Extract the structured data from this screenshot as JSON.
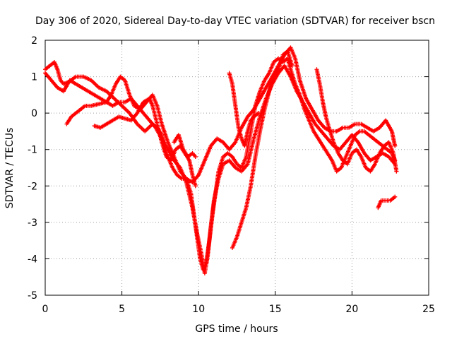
{
  "chart_data": {
    "type": "scatter",
    "title": "Day 306 of 2020, Sidereal Day-to-day VTEC variation (SDTVAR) for receiver bscn",
    "xlabel": "GPS time / hours",
    "ylabel": "SDTVAR / TECUs",
    "xlim": [
      0,
      25
    ],
    "ylim": [
      -5,
      2
    ],
    "xticks": [
      "0",
      "5",
      "10",
      "15",
      "20",
      "25"
    ],
    "yticks": [
      "-5",
      "-4",
      "-3",
      "-2",
      "-1",
      "0",
      "1",
      "2"
    ],
    "grid": true,
    "marker": "plus",
    "color": "#ff0000",
    "series": [
      {
        "segments": [
          [
            [
              0.0,
              1.2
            ],
            [
              0.3,
              1.3
            ],
            [
              0.6,
              1.4
            ],
            [
              0.8,
              1.2
            ],
            [
              1.0,
              0.9
            ],
            [
              1.2,
              0.8
            ],
            [
              1.5,
              0.85
            ],
            [
              2.0,
              1.0
            ],
            [
              2.5,
              1.0
            ],
            [
              3.0,
              0.9
            ],
            [
              3.5,
              0.7
            ],
            [
              4.0,
              0.6
            ],
            [
              4.5,
              0.4
            ],
            [
              5.0,
              0.2
            ],
            [
              5.5,
              0.0
            ],
            [
              6.0,
              -0.3
            ],
            [
              6.5,
              -0.5
            ],
            [
              7.0,
              -0.3
            ],
            [
              7.3,
              -0.4
            ],
            [
              7.6,
              -0.6
            ],
            [
              7.8,
              -1.0
            ],
            [
              8.0,
              -1.2
            ],
            [
              8.3,
              -1.5
            ],
            [
              8.6,
              -1.7
            ],
            [
              8.9,
              -1.8
            ],
            [
              9.2,
              -1.8
            ],
            [
              9.5,
              -2.2
            ],
            [
              9.7,
              -2.8
            ],
            [
              9.9,
              -3.4
            ],
            [
              10.1,
              -4.0
            ],
            [
              10.3,
              -4.3
            ],
            [
              10.5,
              -4.1
            ],
            [
              10.7,
              -3.5
            ],
            [
              10.9,
              -2.8
            ],
            [
              11.1,
              -2.2
            ],
            [
              11.3,
              -1.6
            ],
            [
              11.6,
              -1.2
            ],
            [
              11.9,
              -1.1
            ],
            [
              12.2,
              -1.2
            ],
            [
              12.5,
              -1.4
            ],
            [
              12.8,
              -1.5
            ],
            [
              13.1,
              -1.2
            ],
            [
              13.4,
              -0.5
            ],
            [
              13.7,
              0.2
            ],
            [
              14.0,
              0.6
            ],
            [
              14.3,
              0.9
            ],
            [
              14.6,
              1.1
            ],
            [
              14.9,
              1.4
            ],
            [
              15.2,
              1.5
            ],
            [
              15.5,
              1.4
            ],
            [
              15.8,
              1.5
            ],
            [
              16.0,
              1.2
            ],
            [
              16.3,
              0.8
            ],
            [
              16.6,
              0.5
            ],
            [
              16.9,
              0.1
            ],
            [
              17.2,
              -0.2
            ],
            [
              17.5,
              -0.5
            ],
            [
              17.8,
              -0.7
            ],
            [
              18.1,
              -0.9
            ],
            [
              18.4,
              -1.1
            ],
            [
              18.7,
              -1.3
            ],
            [
              19.0,
              -1.6
            ],
            [
              19.3,
              -1.5
            ],
            [
              19.6,
              -1.2
            ],
            [
              19.9,
              -0.9
            ],
            [
              20.2,
              -0.6
            ],
            [
              20.5,
              -0.5
            ],
            [
              20.8,
              -0.5
            ],
            [
              21.1,
              -0.6
            ],
            [
              21.4,
              -0.7
            ],
            [
              21.7,
              -0.8
            ],
            [
              22.0,
              -0.9
            ],
            [
              22.3,
              -1.0
            ],
            [
              22.6,
              -1.1
            ],
            [
              22.8,
              -1.3
            ]
          ],
          [
            [
              0.0,
              1.1
            ],
            [
              0.4,
              0.9
            ],
            [
              0.8,
              0.7
            ],
            [
              1.2,
              0.6
            ],
            [
              1.6,
              0.9
            ],
            [
              2.0,
              0.8
            ],
            [
              2.4,
              0.7
            ],
            [
              2.8,
              0.6
            ],
            [
              3.2,
              0.5
            ],
            [
              3.6,
              0.4
            ],
            [
              4.0,
              0.3
            ],
            [
              4.4,
              0.2
            ],
            [
              4.8,
              0.3
            ],
            [
              5.2,
              0.3
            ],
            [
              5.6,
              0.4
            ],
            [
              6.0,
              0.2
            ],
            [
              6.4,
              0.0
            ],
            [
              6.8,
              -0.2
            ],
            [
              7.2,
              -0.4
            ],
            [
              7.6,
              -0.7
            ],
            [
              8.0,
              -1.0
            ],
            [
              8.4,
              -1.3
            ],
            [
              8.8,
              -1.5
            ],
            [
              9.2,
              -1.9
            ],
            [
              9.6,
              -2.6
            ],
            [
              9.9,
              -3.3
            ],
            [
              10.2,
              -3.9
            ],
            [
              10.4,
              -4.4
            ],
            [
              10.6,
              -3.9
            ],
            [
              10.8,
              -3.1
            ],
            [
              11.0,
              -2.4
            ],
            [
              11.3,
              -1.8
            ],
            [
              11.6,
              -1.4
            ],
            [
              12.0,
              -1.3
            ],
            [
              12.4,
              -1.5
            ],
            [
              12.8,
              -1.6
            ],
            [
              13.2,
              -1.4
            ],
            [
              13.6,
              -0.7
            ],
            [
              14.0,
              -0.1
            ],
            [
              14.4,
              0.4
            ],
            [
              14.8,
              0.8
            ],
            [
              15.2,
              1.1
            ],
            [
              15.6,
              1.3
            ],
            [
              16.0,
              1.0
            ],
            [
              16.4,
              0.6
            ],
            [
              16.8,
              0.3
            ],
            [
              17.2,
              0.0
            ],
            [
              17.6,
              -0.3
            ],
            [
              18.0,
              -0.5
            ],
            [
              18.4,
              -0.7
            ],
            [
              18.8,
              -0.9
            ],
            [
              19.2,
              -1.0
            ],
            [
              19.6,
              -0.8
            ],
            [
              20.0,
              -0.6
            ],
            [
              20.4,
              -0.8
            ],
            [
              20.8,
              -1.1
            ],
            [
              21.2,
              -1.3
            ],
            [
              21.6,
              -1.2
            ],
            [
              22.0,
              -1.1
            ],
            [
              22.4,
              -1.2
            ],
            [
              22.8,
              -1.4
            ]
          ],
          [
            [
              1.4,
              -0.3
            ],
            [
              1.7,
              -0.1
            ],
            [
              2.0,
              0.0
            ],
            [
              2.3,
              0.1
            ],
            [
              2.6,
              0.2
            ],
            [
              3.0,
              0.2
            ],
            [
              3.5,
              0.25
            ],
            [
              4.0,
              0.3
            ],
            [
              4.3,
              0.5
            ],
            [
              4.6,
              0.8
            ],
            [
              4.9,
              1.0
            ],
            [
              5.2,
              0.9
            ],
            [
              5.5,
              0.5
            ],
            [
              5.8,
              0.2
            ],
            [
              6.2,
              0.1
            ],
            [
              6.6,
              0.3
            ],
            [
              7.0,
              0.5
            ],
            [
              7.3,
              0.2
            ],
            [
              7.6,
              -0.3
            ],
            [
              8.0,
              -0.8
            ],
            [
              8.4,
              -1.2
            ],
            [
              8.8,
              -1.6
            ],
            [
              9.2,
              -1.8
            ],
            [
              9.6,
              -1.9
            ],
            [
              10.0,
              -1.7
            ],
            [
              10.4,
              -1.3
            ],
            [
              10.8,
              -0.9
            ],
            [
              11.2,
              -0.7
            ],
            [
              11.6,
              -0.8
            ],
            [
              12.0,
              -1.0
            ],
            [
              12.4,
              -0.8
            ],
            [
              12.8,
              -0.4
            ],
            [
              13.2,
              -0.1
            ],
            [
              13.6,
              0.1
            ],
            [
              14.0,
              0.4
            ],
            [
              14.4,
              0.7
            ],
            [
              14.8,
              1.0
            ],
            [
              15.2,
              1.3
            ],
            [
              15.6,
              1.6
            ],
            [
              16.0,
              1.8
            ],
            [
              16.3,
              1.5
            ],
            [
              16.6,
              0.9
            ],
            [
              17.0,
              0.4
            ],
            [
              17.4,
              0.1
            ],
            [
              17.8,
              -0.2
            ],
            [
              18.2,
              -0.4
            ],
            [
              18.6,
              -0.5
            ],
            [
              19.0,
              -0.5
            ],
            [
              19.4,
              -0.4
            ],
            [
              19.8,
              -0.4
            ],
            [
              20.2,
              -0.3
            ],
            [
              20.6,
              -0.3
            ],
            [
              21.0,
              -0.4
            ],
            [
              21.4,
              -0.5
            ],
            [
              21.8,
              -0.4
            ],
            [
              22.2,
              -0.2
            ],
            [
              22.6,
              -0.5
            ],
            [
              22.8,
              -0.9
            ]
          ],
          [
            [
              3.2,
              -0.35
            ],
            [
              3.6,
              -0.4
            ],
            [
              4.0,
              -0.3
            ],
            [
              4.4,
              -0.2
            ],
            [
              4.8,
              -0.1
            ],
            [
              5.2,
              -0.15
            ],
            [
              5.6,
              -0.2
            ],
            [
              6.0,
              0.0
            ],
            [
              6.4,
              0.3
            ],
            [
              6.8,
              0.4
            ],
            [
              7.0,
              0.2
            ],
            [
              7.3,
              -0.3
            ],
            [
              7.6,
              -0.8
            ],
            [
              7.9,
              -1.2
            ],
            [
              8.2,
              -1.3
            ],
            [
              8.5,
              -1.0
            ],
            [
              8.8,
              -0.9
            ],
            [
              9.1,
              -1.1
            ],
            [
              9.4,
              -1.3
            ],
            [
              9.6,
              -1.7
            ],
            [
              9.8,
              -2.0
            ]
          ],
          [
            [
              8.4,
              -0.8
            ],
            [
              8.7,
              -0.6
            ],
            [
              9.0,
              -1.0
            ],
            [
              9.3,
              -1.2
            ],
            [
              9.6,
              -1.1
            ],
            [
              9.8,
              -1.2
            ]
          ],
          [
            [
              12.0,
              1.1
            ],
            [
              12.2,
              0.8
            ],
            [
              12.4,
              0.2
            ],
            [
              12.6,
              -0.4
            ],
            [
              12.8,
              -0.7
            ],
            [
              13.0,
              -0.9
            ],
            [
              13.2,
              -0.5
            ],
            [
              13.4,
              -0.2
            ],
            [
              13.6,
              -0.1
            ],
            [
              13.9,
              0.0
            ]
          ],
          [
            [
              12.2,
              -3.7
            ],
            [
              12.5,
              -3.4
            ],
            [
              12.8,
              -3.0
            ],
            [
              13.1,
              -2.6
            ],
            [
              13.4,
              -2.0
            ],
            [
              13.7,
              -1.2
            ],
            [
              14.0,
              -0.5
            ],
            [
              14.3,
              0.1
            ],
            [
              14.6,
              0.6
            ],
            [
              14.9,
              1.0
            ],
            [
              15.2,
              1.2
            ],
            [
              15.5,
              1.6
            ],
            [
              15.8,
              1.7
            ],
            [
              16.1,
              1.3
            ]
          ],
          [
            [
              17.7,
              1.2
            ],
            [
              17.9,
              0.8
            ],
            [
              18.1,
              0.3
            ],
            [
              18.3,
              -0.1
            ],
            [
              18.5,
              -0.4
            ],
            [
              18.8,
              -0.8
            ],
            [
              19.1,
              -1.1
            ],
            [
              19.4,
              -1.3
            ],
            [
              19.7,
              -1.4
            ],
            [
              20.0,
              -1.1
            ],
            [
              20.3,
              -1.0
            ],
            [
              20.6,
              -1.2
            ],
            [
              20.9,
              -1.5
            ],
            [
              21.2,
              -1.6
            ],
            [
              21.5,
              -1.4
            ],
            [
              21.8,
              -1.1
            ],
            [
              22.1,
              -0.9
            ],
            [
              22.4,
              -0.8
            ],
            [
              22.7,
              -1.1
            ],
            [
              22.9,
              -1.6
            ]
          ],
          [
            [
              21.7,
              -2.6
            ],
            [
              21.9,
              -2.4
            ],
            [
              22.2,
              -2.4
            ],
            [
              22.5,
              -2.4
            ],
            [
              22.8,
              -2.3
            ]
          ]
        ]
      }
    ]
  }
}
